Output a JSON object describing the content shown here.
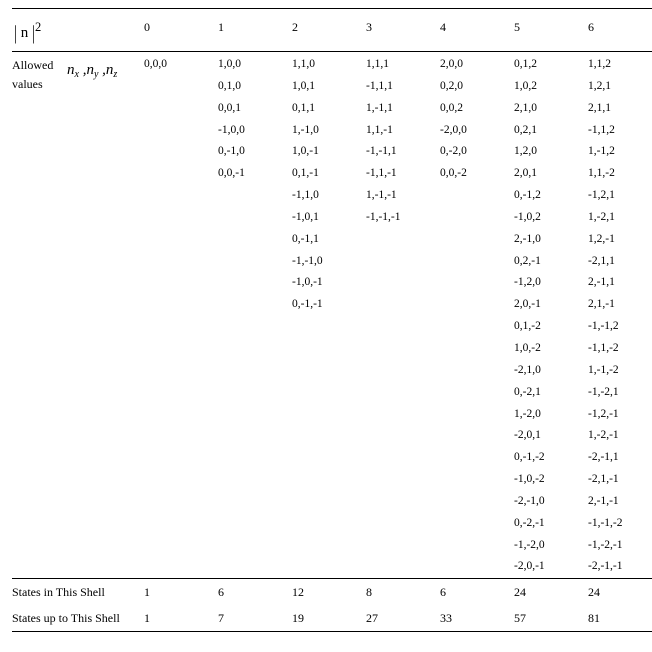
{
  "header": {
    "magnitude_label": "| n |",
    "magnitude_sup": "2",
    "columns": [
      "0",
      "1",
      "2",
      "3",
      "4",
      "5",
      "6"
    ]
  },
  "row_label": {
    "line1": "Allowed",
    "line2": "values",
    "symbol_html": "n<sub>x</sub> ,n<sub>y</sub> ,n<sub>z</sub>"
  },
  "triplets": {
    "c0": [
      "0,0,0"
    ],
    "c1": [
      "1,0,0",
      "0,1,0",
      "0,0,1",
      "-1,0,0",
      "0,-1,0",
      "0,0,-1"
    ],
    "c2": [
      "1,1,0",
      "1,0,1",
      "0,1,1",
      "1,-1,0",
      "1,0,-1",
      "0,1,-1",
      "-1,1,0",
      "-1,0,1",
      "0,-1,1",
      "-1,-1,0",
      "-1,0,-1",
      "0,-1,-1"
    ],
    "c3": [
      "1,1,1",
      "-1,1,1",
      "1,-1,1",
      "1,1,-1",
      "-1,-1,1",
      "-1,1,-1",
      "1,-1,-1",
      "-1,-1,-1"
    ],
    "c4": [
      "2,0,0",
      "0,2,0",
      "0,0,2",
      "-2,0,0",
      "0,-2,0",
      "0,0,-2"
    ],
    "c5": [
      "0,1,2",
      "1,0,2",
      "2,1,0",
      "0,2,1",
      "1,2,0",
      "2,0,1",
      "0,-1,2",
      "-1,0,2",
      "2,-1,0",
      "0,2,-1",
      "-1,2,0",
      "2,0,-1",
      "0,1,-2",
      "1,0,-2",
      "-2,1,0",
      "0,-2,1",
      "1,-2,0",
      "-2,0,1",
      "0,-1,-2",
      "-1,0,-2",
      "-2,-1,0",
      "0,-2,-1",
      "-1,-2,0",
      "-2,0,-1"
    ],
    "c6": [
      "1,1,2",
      "1,2,1",
      "2,1,1",
      "-1,1,2",
      "1,-1,2",
      "1,1,-2",
      "-1,2,1",
      "1,-2,1",
      "1,2,-1",
      "-2,1,1",
      "2,-1,1",
      "2,1,-1",
      "-1,-1,2",
      "-1,1,-2",
      "1,-1,-2",
      "-1,-2,1",
      "-1,2,-1",
      "1,-2,-1",
      "-2,-1,1",
      "-2,1,-1",
      "2,-1,-1",
      "-1,-1,-2",
      "-1,-2,-1",
      "-2,-1,-1"
    ]
  },
  "footer": {
    "states_in_shell": {
      "label": "States in This Shell",
      "vals": [
        "1",
        "6",
        "12",
        "8",
        "6",
        "24",
        "24"
      ]
    },
    "states_upto_shell": {
      "label": "States up to This Shell",
      "vals": [
        "1",
        "7",
        "19",
        "27",
        "33",
        "57",
        "81"
      ]
    }
  }
}
